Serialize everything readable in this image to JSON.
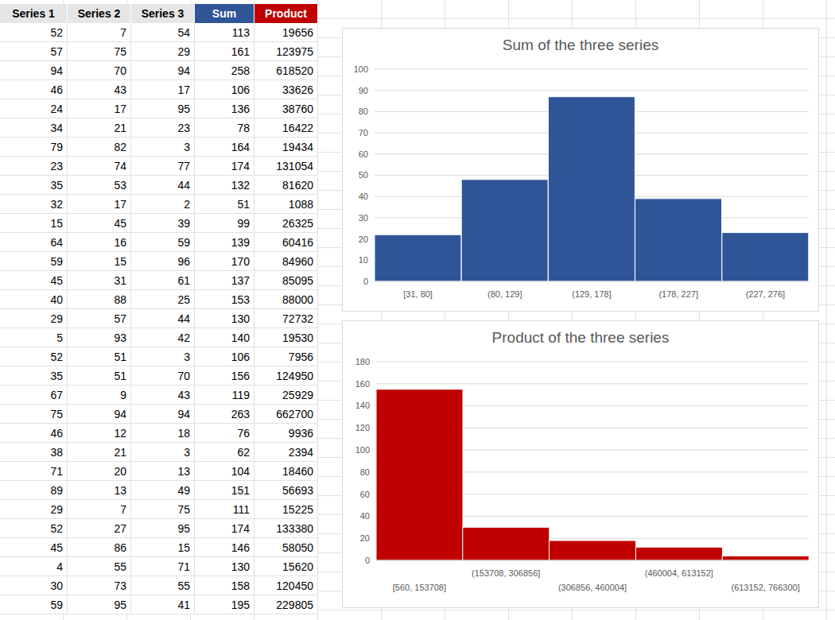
{
  "table": {
    "columns": [
      "Series 1",
      "Series 2",
      "Series 3",
      "Sum",
      "Product"
    ],
    "rows": [
      [
        52,
        7,
        54,
        113,
        19656
      ],
      [
        57,
        75,
        29,
        161,
        123975
      ],
      [
        94,
        70,
        94,
        258,
        618520
      ],
      [
        46,
        43,
        17,
        106,
        33626
      ],
      [
        24,
        17,
        95,
        136,
        38760
      ],
      [
        34,
        21,
        23,
        78,
        16422
      ],
      [
        79,
        82,
        3,
        164,
        19434
      ],
      [
        23,
        74,
        77,
        174,
        131054
      ],
      [
        35,
        53,
        44,
        132,
        81620
      ],
      [
        32,
        17,
        2,
        51,
        1088
      ],
      [
        15,
        45,
        39,
        99,
        26325
      ],
      [
        64,
        16,
        59,
        139,
        60416
      ],
      [
        59,
        15,
        96,
        170,
        84960
      ],
      [
        45,
        31,
        61,
        137,
        85095
      ],
      [
        40,
        88,
        25,
        153,
        88000
      ],
      [
        29,
        57,
        44,
        130,
        72732
      ],
      [
        5,
        93,
        42,
        140,
        19530
      ],
      [
        52,
        51,
        3,
        106,
        7956
      ],
      [
        35,
        51,
        70,
        156,
        124950
      ],
      [
        67,
        9,
        43,
        119,
        25929
      ],
      [
        75,
        94,
        94,
        263,
        662700
      ],
      [
        46,
        12,
        18,
        76,
        9936
      ],
      [
        38,
        21,
        3,
        62,
        2394
      ],
      [
        71,
        20,
        13,
        104,
        18460
      ],
      [
        89,
        13,
        49,
        151,
        56693
      ],
      [
        29,
        7,
        75,
        111,
        15225
      ],
      [
        52,
        27,
        95,
        174,
        133380
      ],
      [
        45,
        86,
        15,
        146,
        58050
      ],
      [
        4,
        55,
        71,
        130,
        15620
      ],
      [
        30,
        73,
        55,
        158,
        120450
      ],
      [
        59,
        95,
        41,
        195,
        229805
      ]
    ]
  },
  "chart_data": [
    {
      "type": "bar",
      "title": "Sum of the three series",
      "categories": [
        "[31, 80]",
        "(80, 129]",
        "(129, 178]",
        "(178, 227]",
        "(227, 276]"
      ],
      "values": [
        22,
        48,
        87,
        39,
        23
      ],
      "color": "#2f5597",
      "ylim": [
        0,
        100
      ],
      "yticks": [
        0,
        10,
        20,
        30,
        40,
        50,
        60,
        70,
        80,
        90,
        100
      ],
      "grid": true
    },
    {
      "type": "bar",
      "title": "Product of the three series",
      "categories": [
        "[560, 153708]",
        "(153708, 306856]",
        "(306856, 460004]",
        "(460004, 613152]",
        "(613152, 766300]"
      ],
      "values": [
        155,
        30,
        18,
        12,
        4
      ],
      "color": "#c00000",
      "ylim": [
        0,
        180
      ],
      "yticks": [
        0,
        20,
        40,
        60,
        80,
        100,
        120,
        140,
        160,
        180
      ],
      "grid": true
    }
  ]
}
